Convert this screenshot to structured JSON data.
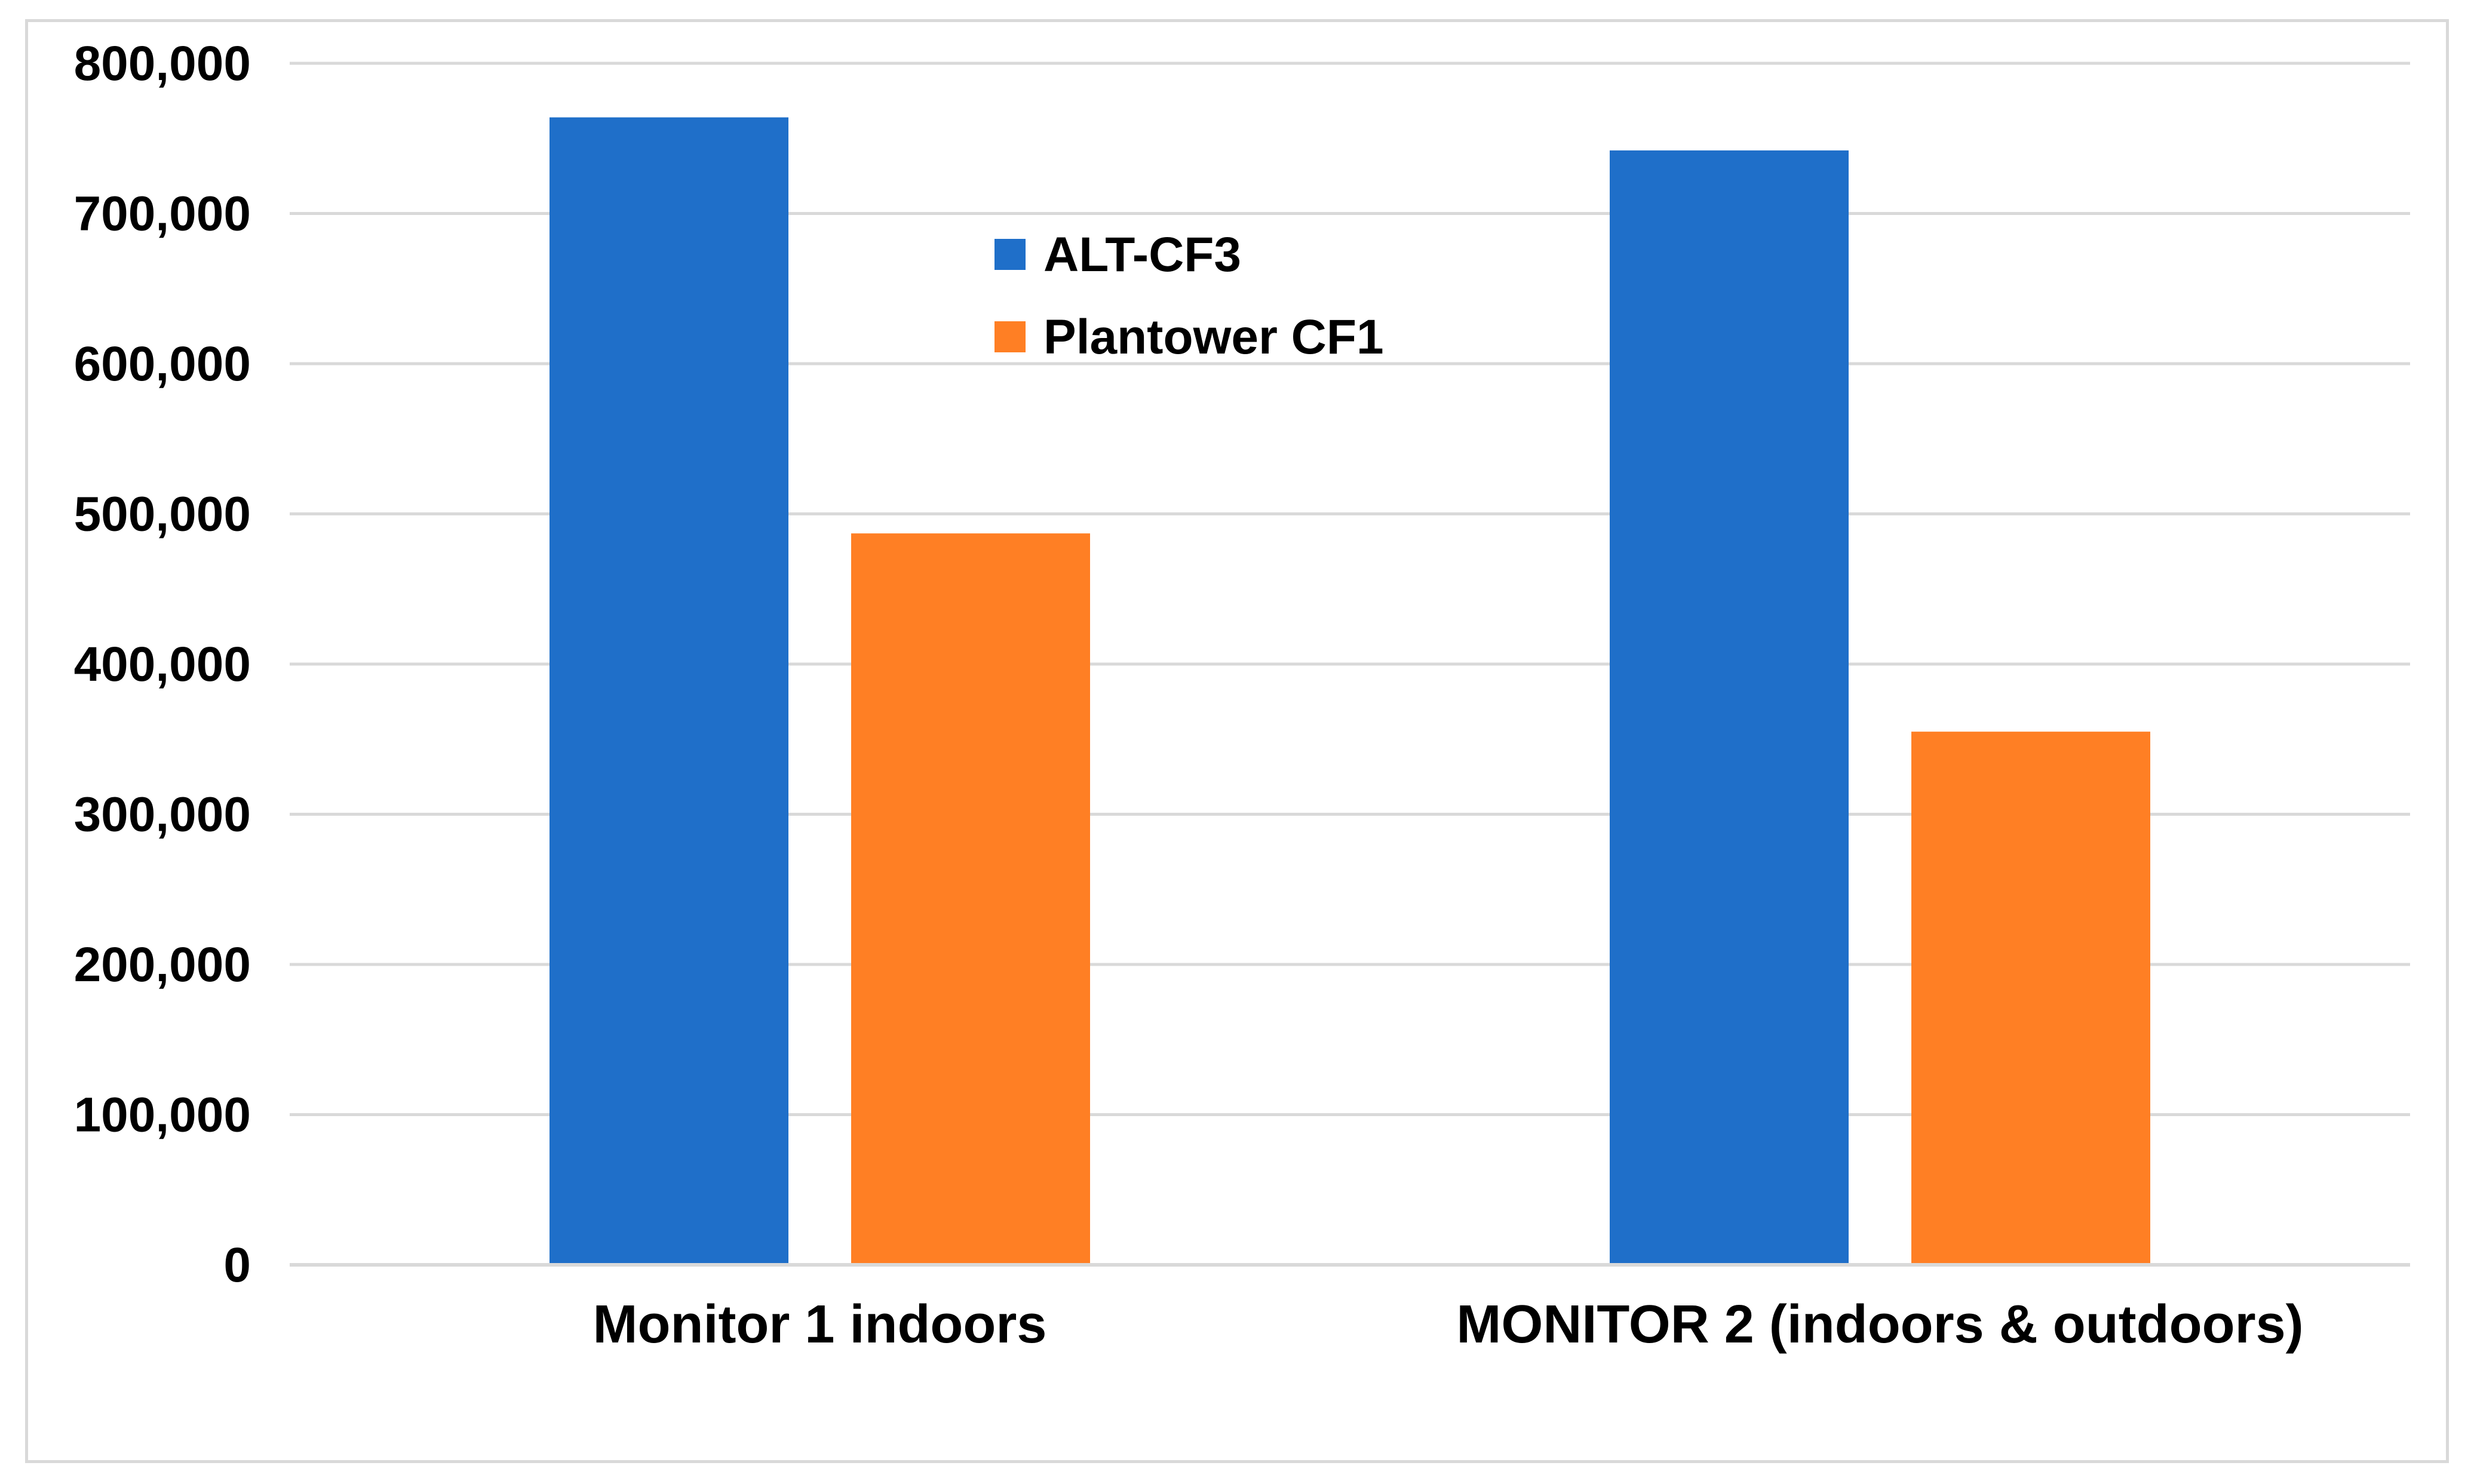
{
  "chart_data": {
    "type": "bar",
    "title": "",
    "xlabel": "",
    "ylabel": "",
    "categories": [
      "Monitor 1 indoors",
      "MONITOR 2 (indoors & outdoors)"
    ],
    "series": [
      {
        "name": "ALT-CF3",
        "color": "#1f6fc9",
        "values": [
          764000,
          742000
        ]
      },
      {
        "name": "Plantower CF1",
        "color": "#ff7f24",
        "values": [
          487000,
          355000
        ]
      }
    ],
    "ylim": [
      0,
      800000
    ],
    "yticks": [
      0,
      100000,
      200000,
      300000,
      400000,
      500000,
      600000,
      700000,
      800000
    ],
    "ytick_labels": [
      "0",
      "100,000",
      "200,000",
      "300,000",
      "400,000",
      "500,000",
      "600,000",
      "700,000",
      "800,000"
    ],
    "grid": true,
    "legend_position": "top-center"
  }
}
